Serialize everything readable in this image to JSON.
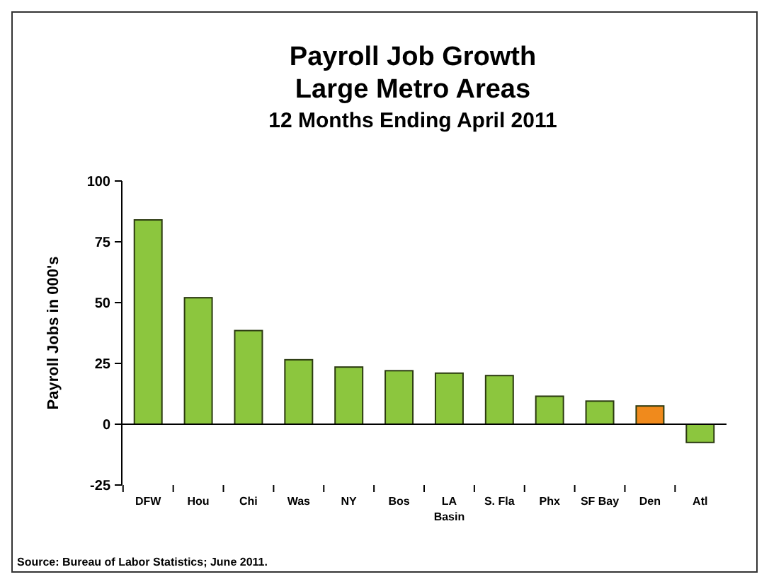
{
  "chart_data": {
    "type": "bar",
    "title": "Payroll Job Growth",
    "subtitle": "Large Metro Areas",
    "annotations": [
      "12 Months Ending April 2011",
      "Source: Bureau of Labor Statistics; June 2011."
    ],
    "ylabel": "Payroll Jobs in 000's",
    "categories": [
      "DFW",
      "Hou",
      "Chi",
      "Was",
      "NY",
      "Bos",
      "LA Basin",
      "S. Fla",
      "Phx",
      "SF Bay",
      "Den",
      "Atl"
    ],
    "values": [
      84,
      52,
      38.5,
      26.5,
      23.5,
      22,
      21,
      20,
      11.5,
      9.5,
      7.5,
      -7.5
    ],
    "colors": [
      "#8cc63e",
      "#8cc63e",
      "#8cc63e",
      "#8cc63e",
      "#8cc63e",
      "#8cc63e",
      "#8cc63e",
      "#8cc63e",
      "#8cc63e",
      "#8cc63e",
      "#f08a1c",
      "#8cc63e"
    ],
    "ylim": [
      -25,
      100
    ],
    "yticks": [
      -25,
      0,
      25,
      50,
      75,
      100
    ]
  }
}
